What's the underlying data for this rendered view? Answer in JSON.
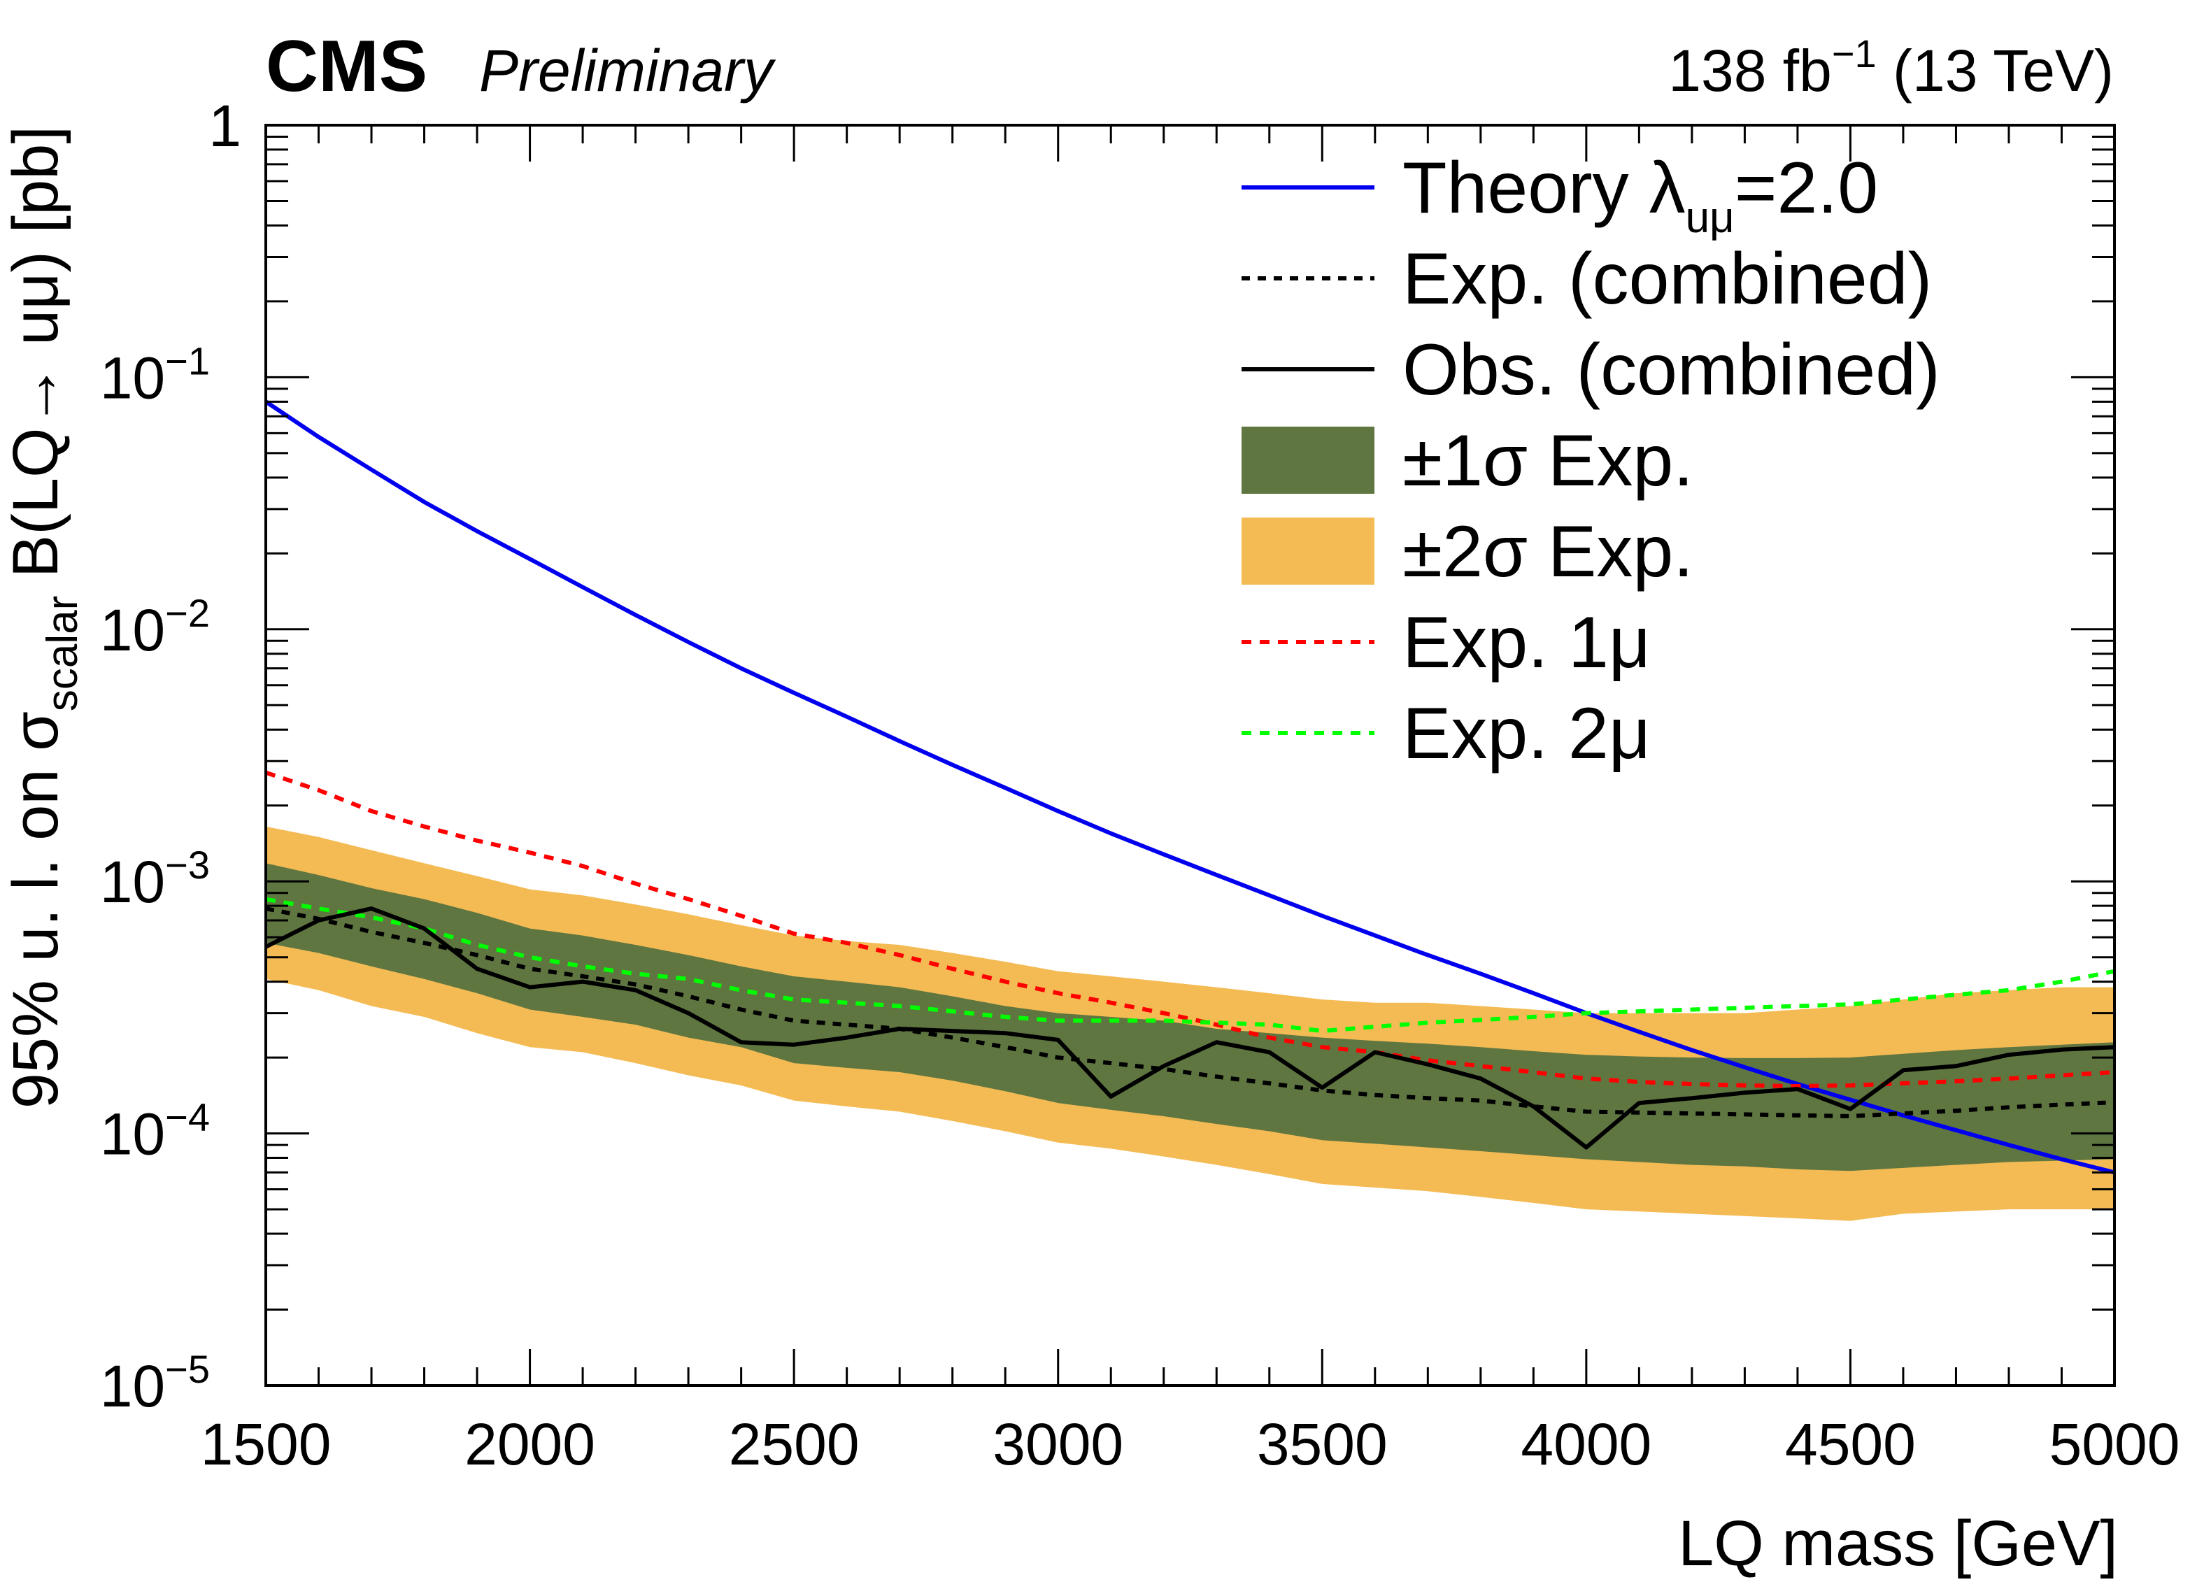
{
  "header": {
    "experiment": "CMS",
    "status": "Preliminary",
    "lumi_value": "138 fb",
    "lumi_exp": "−1",
    "energy": "(13 TeV)"
  },
  "chart_data": {
    "type": "line",
    "log_y": true,
    "xlabel": "LQ mass [GeV]",
    "ylabel": {
      "part1": "95% u. l. on σ",
      "sub": "scalar",
      "part2": " B(LQ→ uμ) [pb]"
    },
    "xlim": [
      1500,
      5000
    ],
    "ylim": [
      1e-05,
      1
    ],
    "x_ticks": [
      {
        "value": 1500,
        "label": "1500"
      },
      {
        "value": 2000,
        "label": "2000"
      },
      {
        "value": 2500,
        "label": "2500"
      },
      {
        "value": 3000,
        "label": "3000"
      },
      {
        "value": 3500,
        "label": "3500"
      },
      {
        "value": 4000,
        "label": "4000"
      },
      {
        "value": 4500,
        "label": "4500"
      },
      {
        "value": 5000,
        "label": "5000"
      }
    ],
    "y_ticks": [
      {
        "value": 1,
        "base": "1",
        "exp": ""
      },
      {
        "value": 0.1,
        "base": "10",
        "exp": "−1"
      },
      {
        "value": 0.01,
        "base": "10",
        "exp": "−2"
      },
      {
        "value": 0.001,
        "base": "10",
        "exp": "−3"
      },
      {
        "value": 0.0001,
        "base": "10",
        "exp": "−4"
      },
      {
        "value": 1e-05,
        "base": "10",
        "exp": "−5"
      }
    ],
    "x": [
      1500,
      1600,
      1700,
      1800,
      1900,
      2000,
      2100,
      2200,
      2300,
      2400,
      2500,
      2600,
      2700,
      2800,
      2900,
      3000,
      3100,
      3200,
      3300,
      3400,
      3500,
      3600,
      3700,
      3800,
      3900,
      4000,
      4100,
      4200,
      4300,
      4400,
      4500,
      4600,
      4700,
      4800,
      4900,
      5000
    ],
    "series": [
      {
        "key": "band2",
        "name": "±2σ Exp.",
        "type": "band",
        "color": "#f4bb54",
        "low": [
          0.00041,
          0.00037,
          0.00032,
          0.00029,
          0.00025,
          0.00022,
          0.00021,
          0.00019,
          0.00017,
          0.000155,
          0.000135,
          0.000128,
          0.000122,
          0.000112,
          0.000102,
          9.2e-05,
          8.7e-05,
          8.1e-05,
          7.5e-05,
          6.9e-05,
          6.3e-05,
          6.1e-05,
          5.9e-05,
          5.6e-05,
          5.3e-05,
          5e-05,
          4.9e-05,
          4.8e-05,
          4.7e-05,
          4.6e-05,
          4.5e-05,
          4.8e-05,
          4.9e-05,
          5e-05,
          5e-05,
          5e-05
        ],
        "high": [
          0.00165,
          0.0015,
          0.00133,
          0.00118,
          0.00105,
          0.00093,
          0.00088,
          0.00081,
          0.00074,
          0.00067,
          0.00061,
          0.00058,
          0.00056,
          0.00052,
          0.00048,
          0.00044,
          0.00042,
          0.0004,
          0.00038,
          0.00036,
          0.00034,
          0.00033,
          0.00033,
          0.00032,
          0.00031,
          0.0003,
          0.0003,
          0.0003,
          0.0003,
          0.00031,
          0.00032,
          0.00034,
          0.00036,
          0.00037,
          0.00038,
          0.00038
        ]
      },
      {
        "key": "band1",
        "name": "±1σ Exp.",
        "type": "band",
        "color": "#607641",
        "low": [
          0.00057,
          0.00052,
          0.00046,
          0.00041,
          0.00036,
          0.00031,
          0.00029,
          0.00027,
          0.00024,
          0.00022,
          0.00019,
          0.000182,
          0.000175,
          0.000162,
          0.000147,
          0.000132,
          0.000124,
          0.000117,
          0.000109,
          0.000102,
          9.4e-05,
          9.1e-05,
          8.8e-05,
          8.5e-05,
          8.2e-05,
          7.9e-05,
          7.7e-05,
          7.5e-05,
          7.4e-05,
          7.2e-05,
          7.1e-05,
          7.3e-05,
          7.5e-05,
          7.7e-05,
          7.8e-05,
          7.9e-05
        ],
        "high": [
          0.00118,
          0.00106,
          0.00094,
          0.00085,
          0.00075,
          0.00065,
          0.00061,
          0.00056,
          0.00051,
          0.00046,
          0.00042,
          0.0004,
          0.00038,
          0.00035,
          0.00032,
          0.0003,
          0.00029,
          0.00028,
          0.00026,
          0.00025,
          0.00024,
          0.000233,
          0.000227,
          0.00022,
          0.000212,
          0.000205,
          0.000202,
          0.0002,
          0.000199,
          0.000199,
          0.0002,
          0.000207,
          0.000214,
          0.00022,
          0.000225,
          0.00023
        ]
      },
      {
        "key": "theory",
        "name": "Theory λ",
        "name_sub": "uμ",
        "name_tail": "=2.0",
        "type": "line",
        "color": "#0000ee",
        "dash": "",
        "values": [
          0.08,
          0.058,
          0.043,
          0.032,
          0.0245,
          0.019,
          0.0147,
          0.0114,
          0.0089,
          0.007,
          0.0056,
          0.0045,
          0.0036,
          0.0029,
          0.00235,
          0.0019,
          0.00155,
          0.00128,
          0.00106,
          0.00088,
          0.00073,
          0.00061,
          0.00051,
          0.00043,
          0.00036,
          0.0003,
          0.000253,
          0.000214,
          0.000183,
          0.000157,
          0.000136,
          0.000118,
          0.000103,
          9e-05,
          7.9e-05,
          7e-05
        ]
      },
      {
        "key": "exp1mu",
        "name": "Exp. 1μ",
        "type": "line",
        "color": "#ff0000",
        "dash": "14,12",
        "values": [
          0.0027,
          0.0023,
          0.0019,
          0.00165,
          0.00145,
          0.0013,
          0.00115,
          0.00098,
          0.00085,
          0.00073,
          0.00062,
          0.00057,
          0.00051,
          0.00045,
          0.0004,
          0.00036,
          0.00033,
          0.0003,
          0.00027,
          0.00024,
          0.00022,
          0.00021,
          0.000195,
          0.000185,
          0.000175,
          0.000165,
          0.00016,
          0.000157,
          0.000155,
          0.000154,
          0.000155,
          0.000158,
          0.000161,
          0.000165,
          0.00017,
          0.000175
        ]
      },
      {
        "key": "exp2mu",
        "name": "Exp. 2μ",
        "type": "line",
        "color": "#00ff00",
        "dash": "14,12",
        "values": [
          0.00085,
          0.00078,
          0.00072,
          0.00065,
          0.00056,
          0.0005,
          0.00046,
          0.00043,
          0.00041,
          0.00037,
          0.00034,
          0.00033,
          0.00032,
          0.000305,
          0.00029,
          0.00028,
          0.00028,
          0.00028,
          0.000275,
          0.00027,
          0.000255,
          0.000265,
          0.000275,
          0.000282,
          0.00029,
          0.0003,
          0.000305,
          0.00031,
          0.000315,
          0.00032,
          0.000325,
          0.00034,
          0.000355,
          0.00037,
          0.0004,
          0.00044
        ]
      },
      {
        "key": "expcomb",
        "name": "Exp. (combined)",
        "type": "line",
        "color": "#000000",
        "dash": "12,11",
        "values": [
          0.00078,
          0.00071,
          0.00063,
          0.00057,
          0.00051,
          0.00045,
          0.00042,
          0.00039,
          0.00035,
          0.00031,
          0.00028,
          0.00027,
          0.00026,
          0.00024,
          0.00022,
          0.0002,
          0.00019,
          0.00018,
          0.000168,
          0.000158,
          0.000148,
          0.000142,
          0.000138,
          0.000135,
          0.000128,
          0.000122,
          0.000121,
          0.00012,
          0.000119,
          0.000118,
          0.000117,
          0.00012,
          0.000123,
          0.000127,
          0.00013,
          0.000133
        ]
      },
      {
        "key": "obs",
        "name": "Obs. (combined)",
        "type": "line",
        "color": "#000000",
        "dash": "",
        "values": [
          0.00055,
          0.0007,
          0.00078,
          0.00065,
          0.00045,
          0.00038,
          0.0004,
          0.00037,
          0.0003,
          0.00023,
          0.000225,
          0.00024,
          0.00026,
          0.000255,
          0.00025,
          0.000235,
          0.00014,
          0.000185,
          0.00023,
          0.00021,
          0.000152,
          0.00021,
          0.000188,
          0.000165,
          0.000128,
          8.8e-05,
          0.000132,
          0.000138,
          0.000145,
          0.00015,
          0.000125,
          0.000178,
          0.000185,
          0.000205,
          0.000215,
          0.00022
        ]
      }
    ],
    "legend": {
      "position": "top-right",
      "order": [
        "theory",
        "expcomb",
        "obs",
        "band1",
        "band2",
        "exp1mu",
        "exp2mu"
      ]
    }
  }
}
